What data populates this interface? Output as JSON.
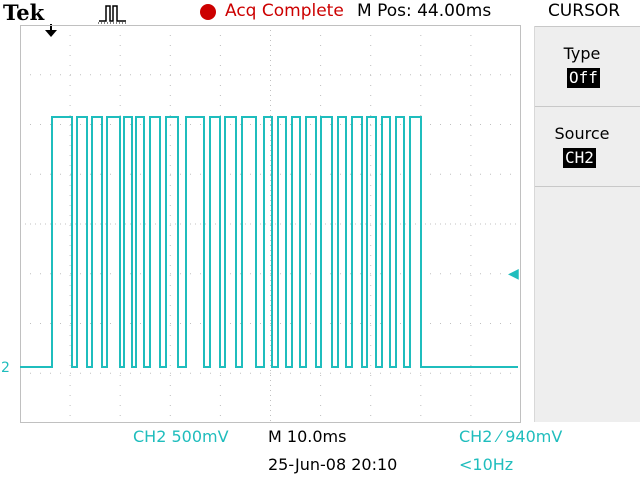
{
  "header": {
    "brand": "Tek",
    "trigger_icon": "pulse-trigger-icon",
    "acq_status": "Acq Complete",
    "m_pos": "M Pos: 44.00ms"
  },
  "menu": {
    "title": "CURSOR",
    "items": [
      {
        "label": "Type",
        "value": "Off"
      },
      {
        "label": "Source",
        "value": "CH2"
      }
    ]
  },
  "screen": {
    "channel_marker": "2",
    "trigger_level_marker": "◀"
  },
  "readouts": {
    "ch2_scale": "CH2  500mV",
    "timebase": "M 10.0ms",
    "trigger": "CH2 ⁄ 940mV",
    "datetime": "25-Jun-08 20:10",
    "frequency": "<10Hz"
  },
  "colors": {
    "trace": "#1fbdbd",
    "acq": "#cc0000",
    "grid": "#c0c0c0"
  },
  "trace": {
    "channel": "CH2",
    "levels": [
      "low",
      "high"
    ]
  }
}
